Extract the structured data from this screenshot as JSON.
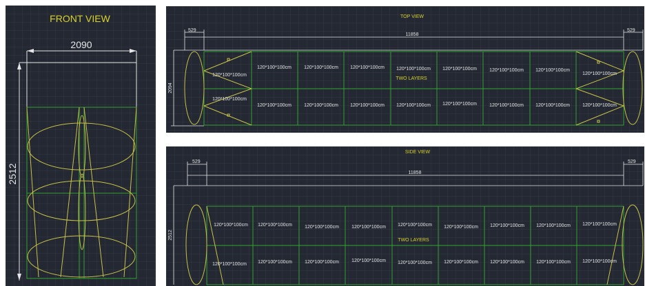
{
  "front_view": {
    "title": "FRONT VIEW",
    "width_dim": "2090",
    "height_dim": "2512"
  },
  "top_view": {
    "title": "TOP VIEW",
    "left_dim": "529",
    "total_dim": "11858",
    "right_dim": "529",
    "height_dim": "2094",
    "layer_note": "TWO LAYERS",
    "row1_cells": [
      "120*100*100cm",
      "120*100*100cm",
      "120*100*100cm",
      "120*100*100cm",
      "120*100*100cm",
      "120*100*100cm",
      "120*100*100cm",
      "120*100*100cm",
      "120*100*100cm"
    ],
    "row2_cells": [
      "120*100*100cm",
      "120*100*100cm",
      "120*100*100cm",
      "120*100*100cm",
      "120*100*100cm",
      "120*100*100cm",
      "120*100*100cm",
      "120*100*100cm",
      "120*100*100cm"
    ]
  },
  "side_view": {
    "title": "SIDE VIEW",
    "left_dim": "529",
    "total_dim": "11858",
    "right_dim": "529",
    "height_dim": "2512",
    "layer_note": "TWO LAYERS",
    "row1_cells": [
      "120*100*100cm",
      "120*100*100cm",
      "120*100*100cm",
      "120*100*100cm",
      "120*100*100cm",
      "120*100*100cm",
      "120*100*100cm",
      "120*100*100cm",
      "120*100*100cm"
    ],
    "row2_cells": [
      "120*100*100cm",
      "120*100*100cm",
      "120*100*100cm",
      "120*100*100cm",
      "120*100*100cm",
      "120*100*100cm",
      "120*100*100cm",
      "120*100*100cm",
      "120*100*100cm"
    ]
  },
  "colors": {
    "background": "#232833",
    "box_line": "#2fa12f",
    "shape_line": "#c9c248",
    "title": "#d9d22c",
    "dimension": "#e6e6e6"
  }
}
